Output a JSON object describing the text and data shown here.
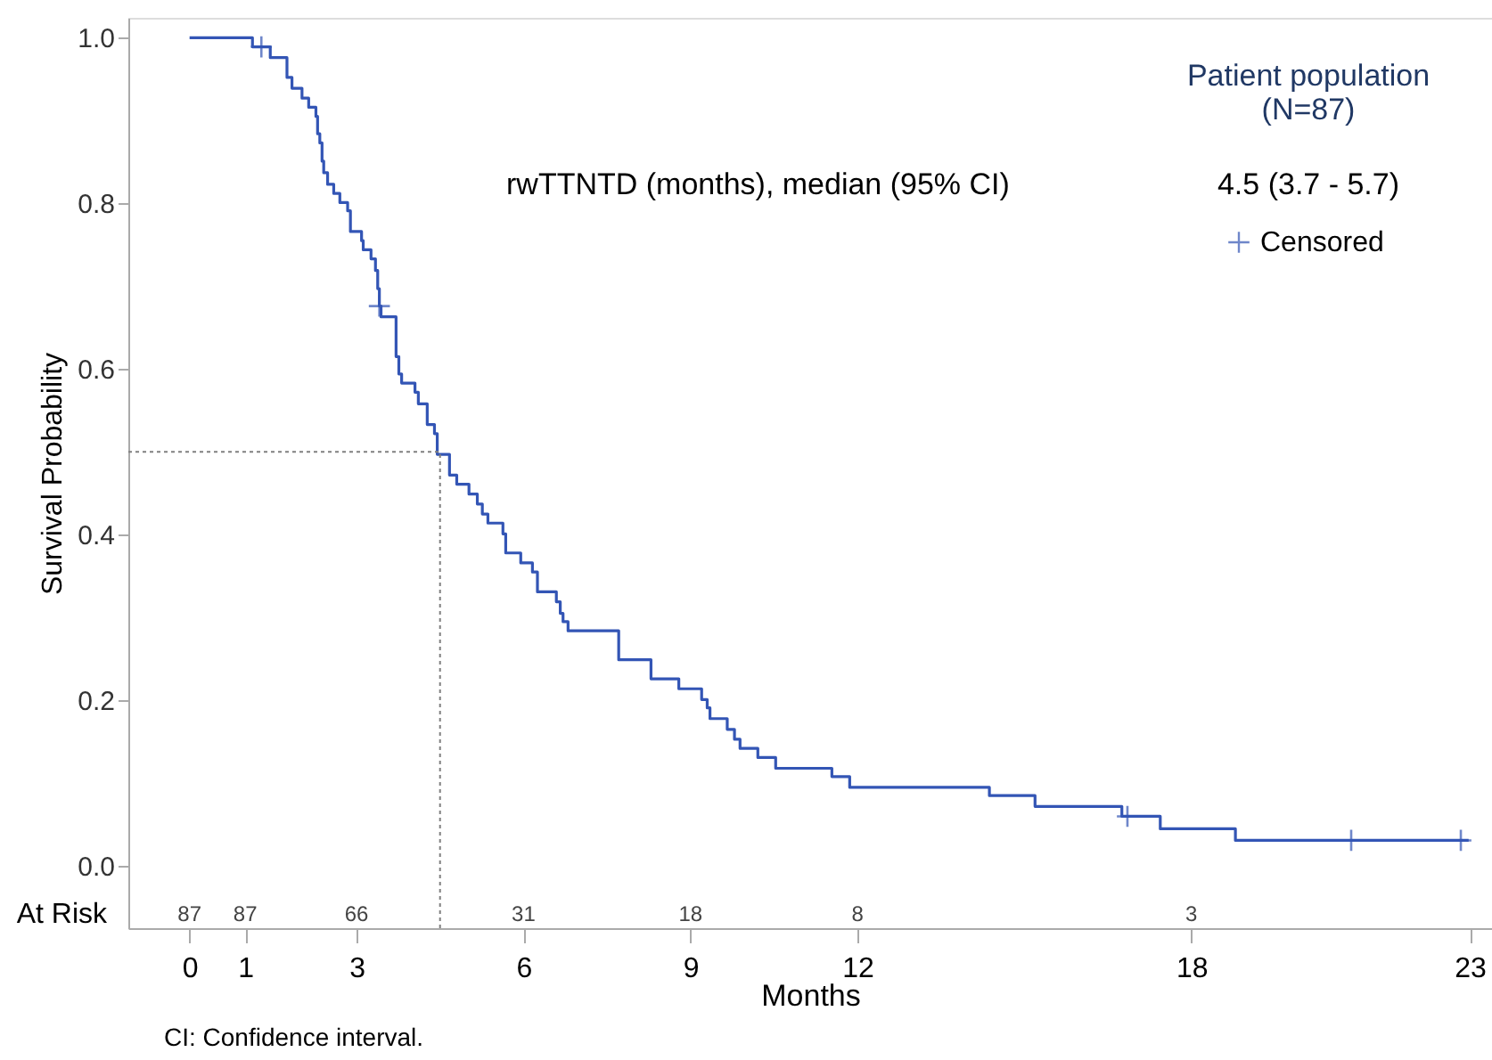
{
  "chart_data": {
    "type": "step",
    "xlabel": "Months",
    "ylabel": "Survival Probability",
    "xlim": [
      -1.1,
      23.4
    ],
    "ylim": [
      -0.075,
      1.024
    ],
    "xticks": [
      0,
      1,
      3,
      6,
      9,
      12,
      18,
      {
        "value": 23,
        "label": "23"
      }
    ],
    "yticks": [
      {
        "value": 0,
        "label": "0.0"
      },
      {
        "value": 0.2,
        "label": "0.2"
      },
      {
        "value": 0.4,
        "label": "0.4"
      },
      {
        "value": 0.6,
        "label": "0.6"
      },
      {
        "value": 0.8,
        "label": "0.8"
      },
      {
        "value": 1.0,
        "label": "1.0"
      }
    ],
    "grid": false,
    "legend": "top right",
    "series": [
      {
        "color": "#3355b5",
        "marker": "none",
        "line_style": "solid",
        "x": [
          0,
          1.13,
          1.45,
          1.75,
          1.84,
          2.02,
          2.14,
          2.27,
          2.3,
          2.34,
          2.38,
          2.41,
          2.48,
          2.59,
          2.7,
          2.84,
          2.89,
          3.09,
          3.12,
          3.26,
          3.34,
          3.38,
          3.41,
          3.44,
          3.71,
          3.76,
          3.81,
          4.05,
          4.11,
          4.27,
          4.4,
          4.45,
          4.67,
          4.8,
          5.02,
          5.17,
          5.26,
          5.36,
          5.63,
          5.68,
          5.95,
          6.16,
          6.25,
          6.59,
          6.66,
          6.71,
          6.8,
          7.71,
          8.29,
          8.79,
          9.2,
          9.3,
          9.35,
          9.66,
          9.79,
          9.89,
          10.21,
          10.53,
          11.54,
          11.86,
          14.37,
          15.19,
          16.75,
          17.44,
          18.79,
          22.98
        ],
        "values": [
          1.0,
          0.989,
          0.976,
          0.952,
          0.939,
          0.927,
          0.916,
          0.905,
          0.884,
          0.873,
          0.851,
          0.837,
          0.823,
          0.812,
          0.801,
          0.791,
          0.766,
          0.755,
          0.744,
          0.733,
          0.719,
          0.697,
          0.676,
          0.663,
          0.615,
          0.594,
          0.583,
          0.572,
          0.558,
          0.533,
          0.522,
          0.497,
          0.472,
          0.461,
          0.449,
          0.437,
          0.425,
          0.414,
          0.401,
          0.378,
          0.366,
          0.355,
          0.331,
          0.319,
          0.305,
          0.295,
          0.284,
          0.249,
          0.226,
          0.214,
          0.201,
          0.191,
          0.178,
          0.165,
          0.153,
          0.142,
          0.131,
          0.118,
          0.108,
          0.095,
          0.085,
          0.072,
          0.06,
          0.045,
          0.031,
          0.031
        ]
      },
      {
        "type": "scatter",
        "name": "Censored",
        "color": "#3355b5",
        "marker": "cross",
        "x": [
          1.29,
          3.41,
          16.85,
          20.87,
          22.84
        ],
        "values": [
          0.989,
          0.676,
          0.06,
          0.031,
          0.031
        ]
      }
    ],
    "ref_lines": [
      {
        "axis": "y",
        "value": 0.5,
        "color": "#808080",
        "line_style": "dotted"
      },
      {
        "axis": "x",
        "value": 4.5,
        "color": "#808080",
        "line_style": "dotted"
      }
    ],
    "annotations": [
      "Patient population\n(N=87)",
      "rwTTNTD (months), median (95% CI)",
      "4.5 (3.7 - 5.7)",
      "At Risk",
      "CI: Confidence interval.",
      "87",
      "87",
      "66",
      "31",
      "18",
      "8",
      "3"
    ]
  }
}
